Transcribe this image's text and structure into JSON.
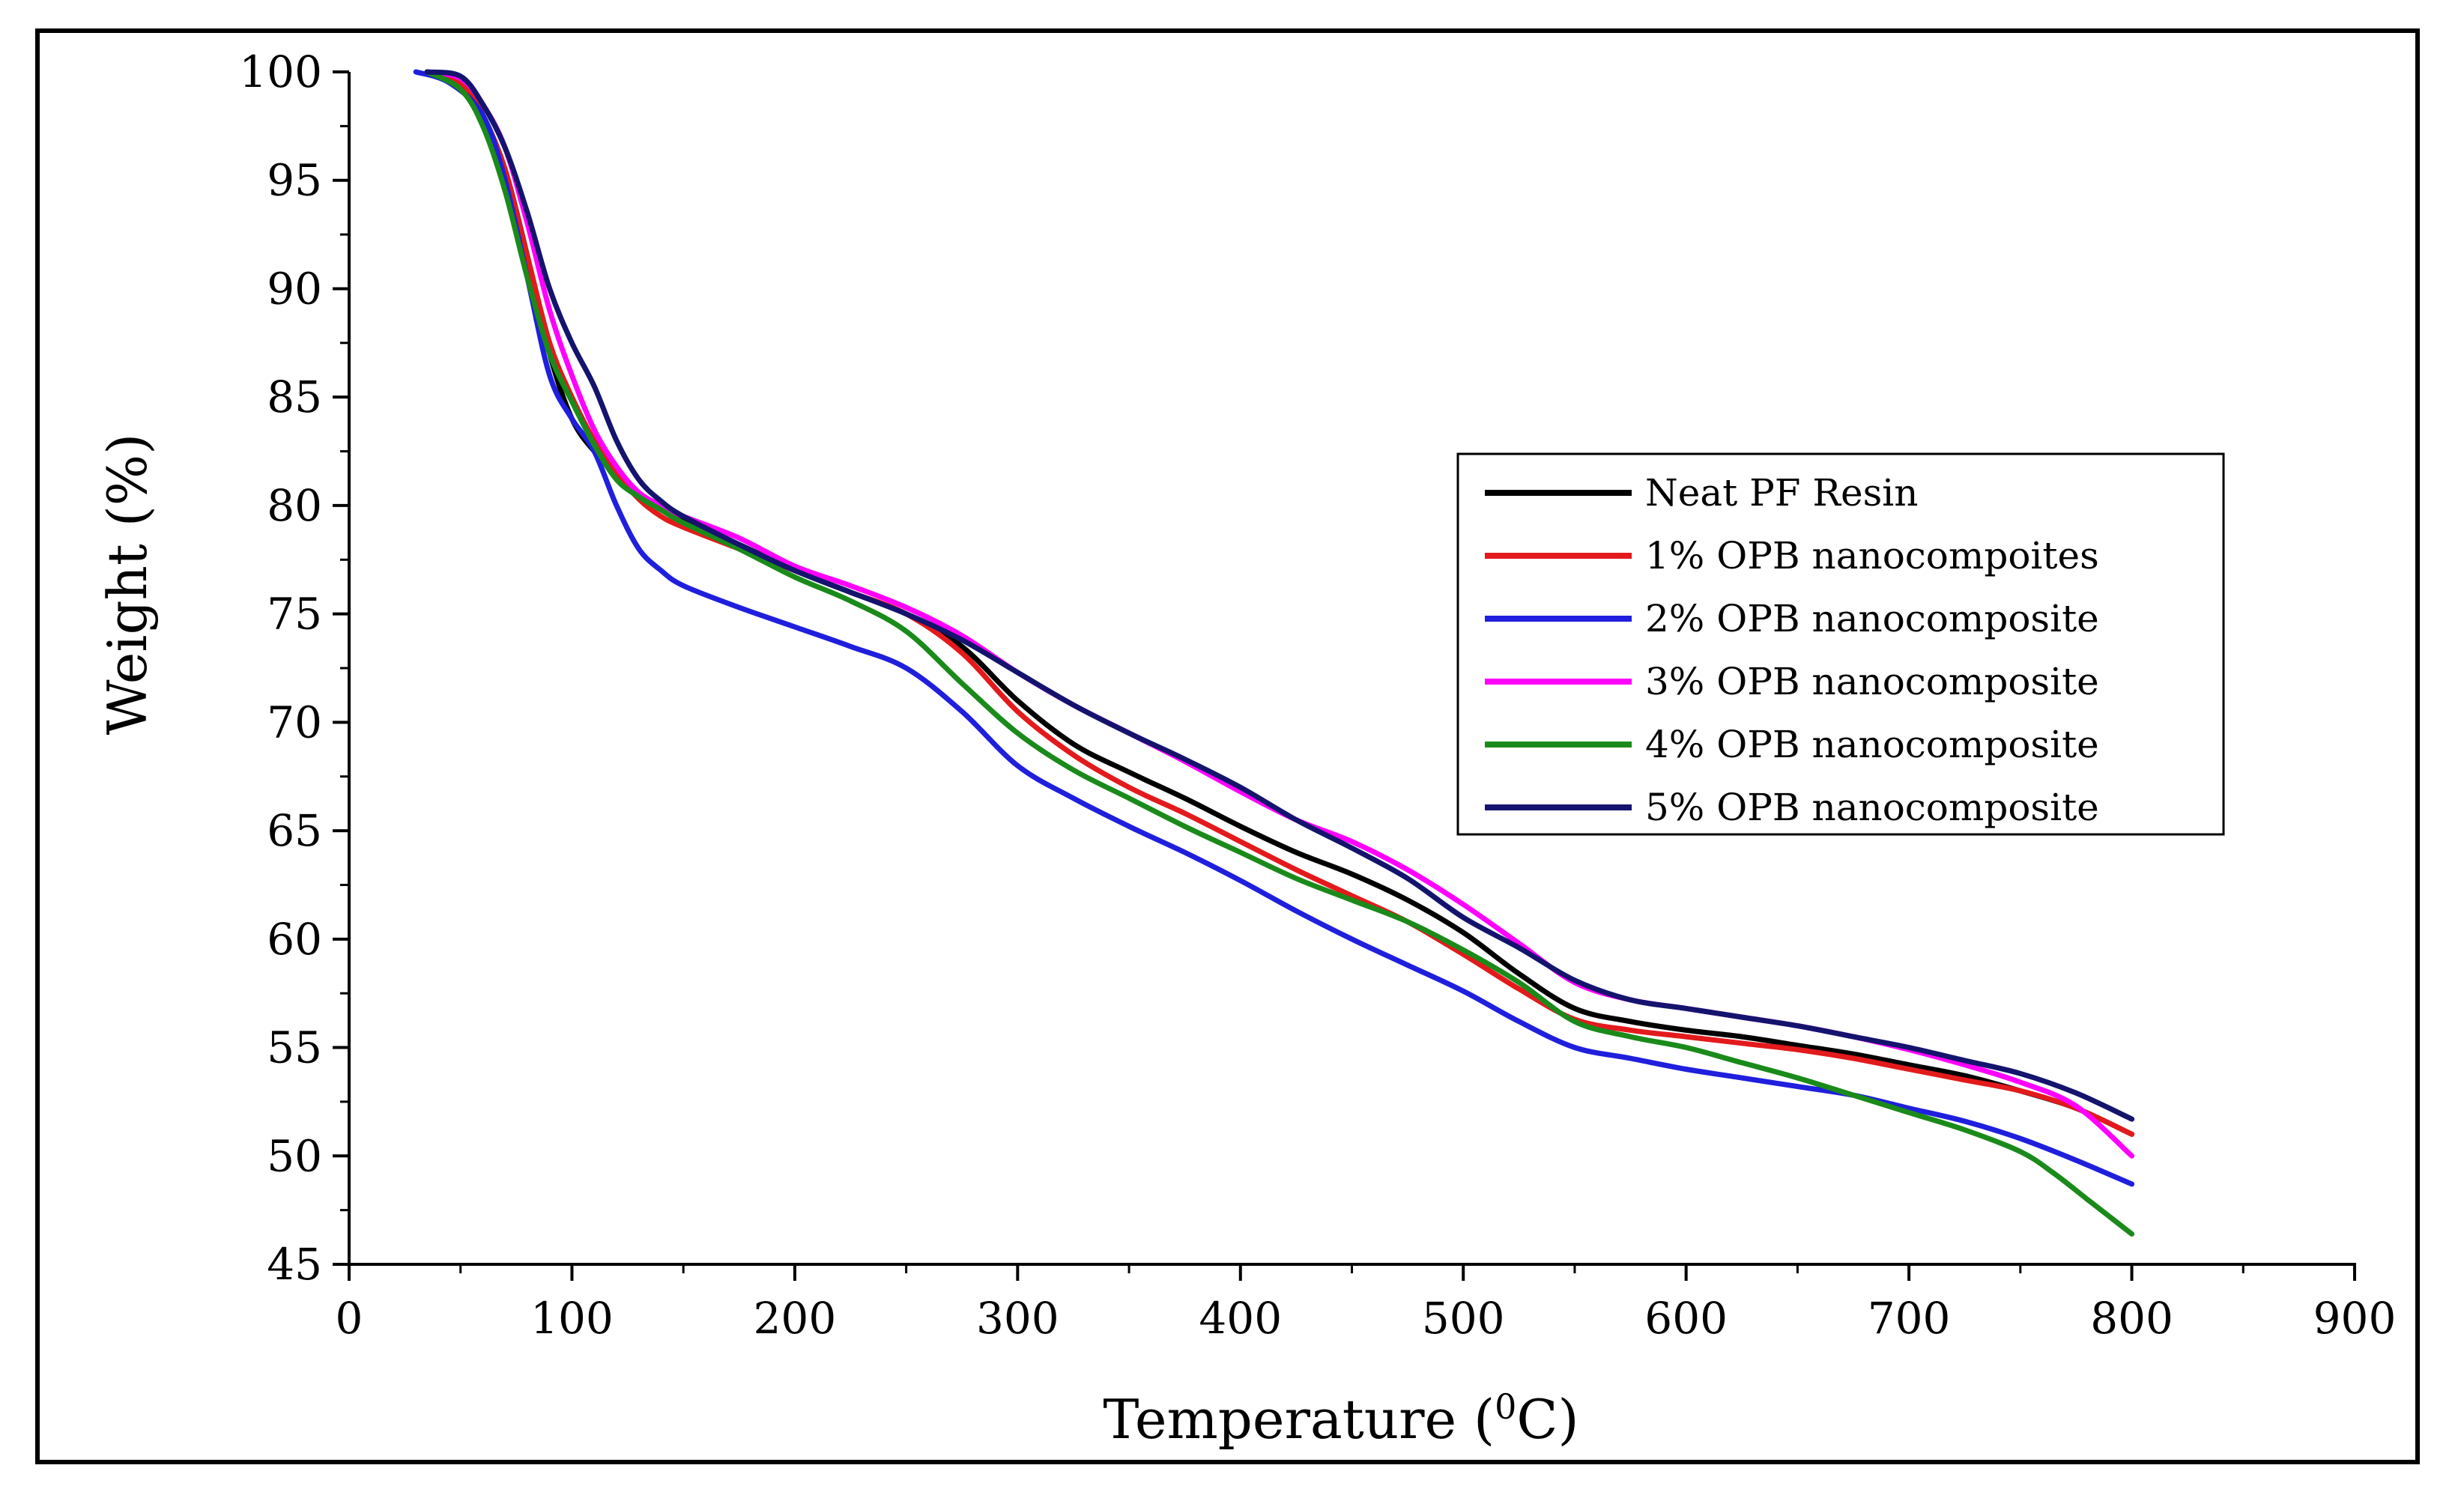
{
  "chart_data": {
    "type": "line",
    "title": "",
    "xlabel_main": "Temperature (",
    "xlabel_sup": "0",
    "xlabel_end": "C)",
    "ylabel": "Weight (%)",
    "xlim": [
      0,
      900
    ],
    "ylim": [
      45,
      100
    ],
    "x_ticks": [
      "0",
      "100",
      "200",
      "300",
      "400",
      "500",
      "600",
      "700",
      "800",
      "900"
    ],
    "y_ticks": [
      "100",
      "95",
      "90",
      "85",
      "80",
      "75",
      "70",
      "65",
      "60",
      "55",
      "50",
      "45"
    ],
    "legend_position": "upper-right",
    "series": [
      {
        "name": "Neat PF Resin",
        "color": "#000000",
        "x": [
          35,
          50,
          60,
          70,
          80,
          90,
          100,
          110,
          120,
          130,
          140,
          150,
          175,
          200,
          225,
          250,
          275,
          300,
          325,
          350,
          375,
          400,
          425,
          450,
          475,
          500,
          525,
          550,
          575,
          600,
          625,
          650,
          675,
          700,
          725,
          750,
          775,
          800
        ],
        "y": [
          100,
          99.5,
          98,
          95.5,
          91.5,
          87,
          84,
          82.5,
          81.5,
          80.5,
          80,
          79.3,
          78.2,
          77,
          76,
          75,
          73.5,
          71,
          69,
          67.7,
          66.5,
          65.2,
          64,
          63,
          61.8,
          60.3,
          58.4,
          56.8,
          56.2,
          55.8,
          55.5,
          55.1,
          54.7,
          54.2,
          53.7,
          53,
          52.2,
          51
        ]
      },
      {
        "name": "1% OPB nanocompoites",
        "color": "#e31a1c",
        "x": [
          35,
          50,
          60,
          70,
          80,
          90,
          100,
          110,
          120,
          130,
          140,
          150,
          175,
          200,
          225,
          250,
          275,
          300,
          325,
          350,
          375,
          400,
          425,
          450,
          475,
          500,
          525,
          550,
          575,
          600,
          625,
          650,
          675,
          700,
          725,
          750,
          775,
          800
        ],
        "y": [
          100,
          99.5,
          98,
          95.5,
          91.5,
          87.5,
          85,
          83,
          81.5,
          80.3,
          79.5,
          79,
          78,
          77,
          76,
          75,
          73.2,
          70.5,
          68.5,
          67,
          65.8,
          64.5,
          63.2,
          62,
          60.8,
          59.3,
          57.7,
          56.3,
          55.8,
          55.5,
          55.2,
          54.9,
          54.5,
          54,
          53.5,
          53,
          52.2,
          51
        ]
      },
      {
        "name": "2% OPB nanocomposite",
        "color": "#1f1fdd",
        "x": [
          30,
          45,
          60,
          70,
          80,
          90,
          100,
          110,
          120,
          130,
          140,
          150,
          175,
          200,
          225,
          250,
          275,
          300,
          325,
          350,
          375,
          400,
          425,
          450,
          475,
          500,
          525,
          550,
          575,
          600,
          625,
          650,
          675,
          700,
          725,
          750,
          775,
          800
        ],
        "y": [
          100,
          99.5,
          98,
          95,
          90.5,
          86,
          84,
          82.5,
          80,
          78,
          77,
          76.3,
          75.3,
          74.4,
          73.5,
          72.5,
          70.5,
          68,
          66.5,
          65.2,
          64,
          62.7,
          61.3,
          60,
          58.8,
          57.6,
          56.2,
          55,
          54.5,
          54,
          53.6,
          53.2,
          52.8,
          52.2,
          51.6,
          50.8,
          49.8,
          48.7
        ]
      },
      {
        "name": "3% OPB nanocomposite",
        "color": "#ff00ff",
        "x": [
          35,
          50,
          60,
          70,
          80,
          90,
          100,
          110,
          120,
          130,
          140,
          150,
          175,
          200,
          225,
          250,
          275,
          300,
          325,
          350,
          375,
          400,
          425,
          450,
          475,
          500,
          525,
          550,
          575,
          600,
          625,
          650,
          675,
          700,
          725,
          750,
          775,
          800
        ],
        "y": [
          100,
          99.7,
          98.5,
          96.5,
          93,
          89,
          86,
          83.5,
          81.8,
          80.6,
          80,
          79.5,
          78.5,
          77.2,
          76.3,
          75.3,
          74,
          72.3,
          70.8,
          69.5,
          68.2,
          66.8,
          65.5,
          64.5,
          63.2,
          61.6,
          59.8,
          58,
          57.2,
          56.8,
          56.4,
          56,
          55.5,
          54.9,
          54.2,
          53.4,
          52.3,
          50
        ]
      },
      {
        "name": "4% OPB nanocomposite",
        "color": "#1a8a1a",
        "x": [
          35,
          50,
          60,
          70,
          80,
          90,
          100,
          110,
          120,
          130,
          140,
          150,
          175,
          200,
          225,
          250,
          275,
          300,
          325,
          350,
          375,
          400,
          425,
          450,
          475,
          500,
          525,
          550,
          575,
          600,
          625,
          650,
          675,
          700,
          725,
          750,
          765,
          780,
          790,
          800
        ],
        "y": [
          100,
          99.2,
          97.5,
          94.5,
          90.5,
          87,
          84.8,
          82.8,
          81.2,
          80.4,
          79.8,
          79.2,
          78,
          76.7,
          75.6,
          74.2,
          71.8,
          69.5,
          67.8,
          66.5,
          65.2,
          64,
          62.8,
          61.8,
          60.8,
          59.5,
          58,
          56.2,
          55.5,
          55,
          54.3,
          53.6,
          52.8,
          52,
          51.2,
          50.2,
          49.2,
          48,
          47.2,
          46.4
        ]
      },
      {
        "name": "5% OPB nanocomposite",
        "color": "#14146e",
        "x": [
          35,
          50,
          60,
          70,
          80,
          90,
          100,
          110,
          120,
          130,
          140,
          150,
          175,
          200,
          225,
          250,
          275,
          300,
          325,
          350,
          375,
          400,
          425,
          450,
          475,
          500,
          525,
          550,
          575,
          600,
          625,
          650,
          675,
          700,
          725,
          750,
          775,
          800
        ],
        "y": [
          100,
          99.8,
          98.5,
          96.5,
          93.5,
          90,
          87.5,
          85.5,
          83,
          81.2,
          80.2,
          79.5,
          78.2,
          77,
          76,
          75,
          73.8,
          72.3,
          70.8,
          69.5,
          68.3,
          67,
          65.5,
          64.2,
          62.8,
          61,
          59.6,
          58.1,
          57.2,
          56.8,
          56.4,
          56,
          55.5,
          55,
          54.4,
          53.8,
          52.9,
          51.7
        ]
      }
    ]
  }
}
